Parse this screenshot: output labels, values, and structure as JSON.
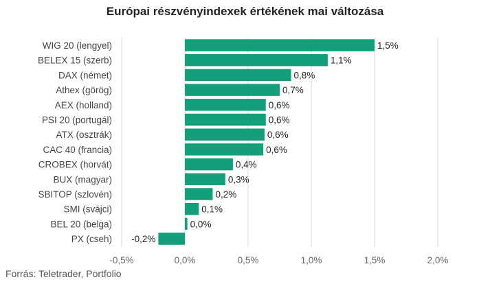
{
  "chart_data": {
    "type": "bar",
    "orientation": "horizontal",
    "title": "Európai részvényindexek értékének mai változása",
    "source": "Forrás: Teletrader, Portfolio",
    "categories": [
      "WIG 20 (lengyel)",
      "BELEX 15 (szerb)",
      "DAX (német)",
      "Athex (görög)",
      "AEX (holland)",
      "PSI 20 (portugál)",
      "ATX (osztrák)",
      "CAC 40 (francia)",
      "CROBEX (horvát)",
      "BUX (magyar)",
      "SBITOP (szlovén)",
      "SMI (svájci)",
      "BEL 20 (belga)",
      "PX (cseh)"
    ],
    "values": [
      1.5,
      1.13,
      0.84,
      0.75,
      0.64,
      0.64,
      0.63,
      0.62,
      0.38,
      0.32,
      0.22,
      0.11,
      0.02,
      -0.21
    ],
    "value_labels": [
      "1,5%",
      "1,1%",
      "0,8%",
      "0,7%",
      "0,6%",
      "0,6%",
      "0,6%",
      "0,6%",
      "0,4%",
      "0,3%",
      "0,2%",
      "0,1%",
      "0,0%",
      "-0,2%"
    ],
    "xlim": [
      -0.5,
      2.0
    ],
    "xticks": [
      -0.5,
      0.0,
      0.5,
      1.0,
      1.5,
      2.0
    ],
    "xtick_labels": [
      "-0,5%",
      "0,0%",
      "0,5%",
      "1,0%",
      "1,5%",
      "2,0%"
    ],
    "grid": true,
    "bar_color": "#11a07a",
    "grid_color": "#d9d9d9"
  }
}
